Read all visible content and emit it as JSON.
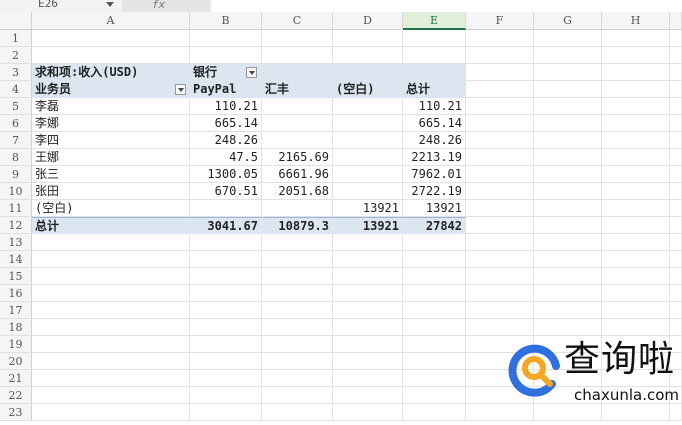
{
  "formula_bar": {
    "name_box": "E26",
    "fx_label": "fx",
    "formula": ""
  },
  "columns": [
    "A",
    "B",
    "C",
    "D",
    "E",
    "F",
    "G",
    "H"
  ],
  "selected_column": "E",
  "row_count": 23,
  "pivot": {
    "title": "求和项:收入(USD)",
    "col_field": "银行",
    "row_field": "业务员",
    "col_headers": [
      "PayPal",
      "汇丰",
      "(空白)",
      "总计"
    ],
    "rows": [
      {
        "name": "李磊",
        "values": [
          "110.21",
          "",
          "",
          "110.21"
        ]
      },
      {
        "name": "李娜",
        "values": [
          "665.14",
          "",
          "",
          "665.14"
        ]
      },
      {
        "name": "李四",
        "values": [
          "248.26",
          "",
          "",
          "248.26"
        ]
      },
      {
        "name": "王娜",
        "values": [
          "47.5",
          "2165.69",
          "",
          "2213.19"
        ]
      },
      {
        "name": "张三",
        "values": [
          "1300.05",
          "6661.96",
          "",
          "7962.01"
        ]
      },
      {
        "name": "张田",
        "values": [
          "670.51",
          "2051.68",
          "",
          "2722.19"
        ]
      },
      {
        "name": "(空白)",
        "values": [
          "",
          "",
          "13921",
          "13921"
        ]
      }
    ],
    "total": {
      "name": "总计",
      "values": [
        "3041.67",
        "10879.3",
        "13921",
        "27842"
      ]
    }
  },
  "watermark": {
    "text": "查询啦",
    "url": "chaxunla.com",
    "colors": {
      "blue": "#2f6fe0",
      "orange": "#f5a623"
    }
  }
}
